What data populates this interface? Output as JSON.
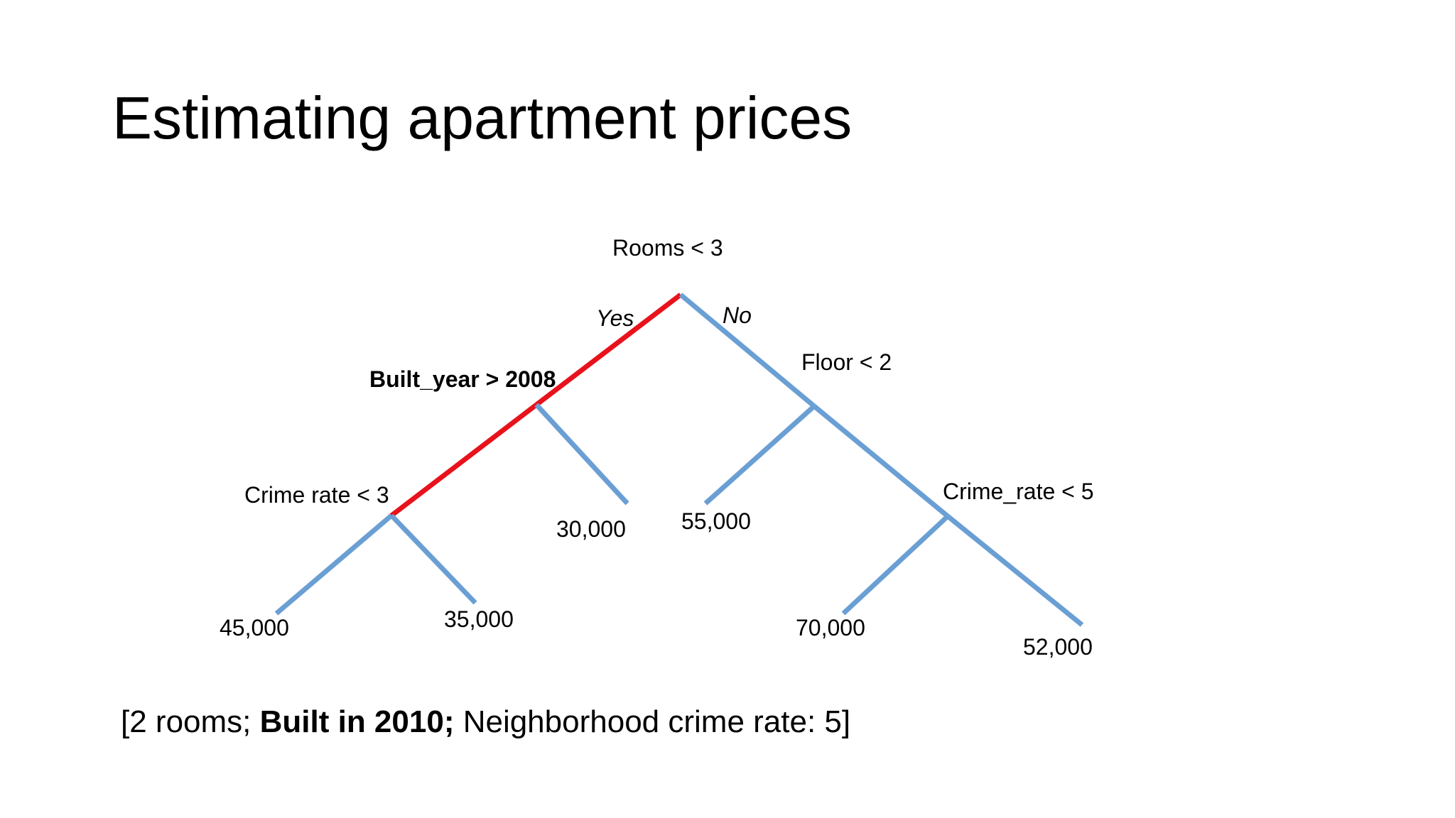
{
  "slide": {
    "title": "Estimating apartment prices"
  },
  "tree": {
    "colors": {
      "normal": "#6a9fd4",
      "highlight": "#e8121c"
    },
    "root": {
      "label": "Rooms < 3"
    },
    "yes_label": "Yes",
    "no_label": "No",
    "node_built_year": {
      "label": "Built_year > 2008"
    },
    "node_floor": {
      "label": "Floor < 2"
    },
    "node_crime_left": {
      "label": "Crime rate < 3"
    },
    "node_crime_right": {
      "label": "Crime_rate < 5"
    },
    "leaves": {
      "l1": "45,000",
      "l2": "35,000",
      "l3": "30,000",
      "l4": "55,000",
      "l5": "70,000",
      "l6": "52,000"
    }
  },
  "footer": {
    "open": "[2 rooms; ",
    "bold": "Built in 2010;",
    "rest": " Neighborhood crime rate: 5]"
  }
}
